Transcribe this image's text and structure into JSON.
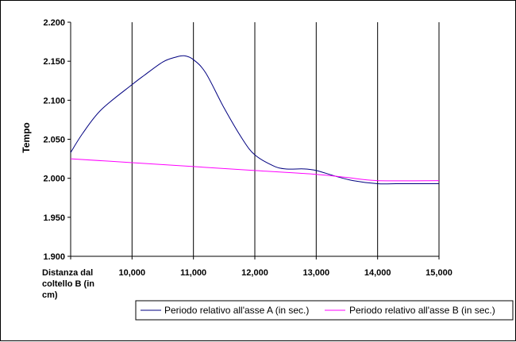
{
  "chart_data": {
    "type": "line",
    "title": "",
    "ylabel": "Tempo",
    "x_categories": [
      "Distanza dal coltello B (in cm)",
      "10,000",
      "11,000",
      "12,000",
      "13,000",
      "14,000",
      "15,000"
    ],
    "x_category_lines": [
      "Distanza dal",
      "coltello B (in",
      "cm)"
    ],
    "xlim": [
      9,
      15
    ],
    "ylim": [
      1.9,
      2.2
    ],
    "yticks": [
      "1.900",
      "1.950",
      "2.000",
      "2.050",
      "2.100",
      "2.150",
      "2.200"
    ],
    "ytick_values": [
      1.9,
      1.95,
      2.0,
      2.05,
      2.1,
      2.15,
      2.2
    ],
    "grid": "vertical",
    "legend_position": "bottom-right",
    "series": [
      {
        "name": "Periodo relativo all'asse A (in sec.)",
        "color": "#000080",
        "x": [
          9.0,
          9.2,
          9.5,
          10.0,
          10.2,
          10.5,
          10.7,
          10.85,
          11.0,
          11.2,
          11.5,
          11.8,
          12.0,
          12.3,
          12.5,
          12.8,
          13.0,
          13.3,
          13.6,
          14.0,
          14.3,
          15.0
        ],
        "y": [
          2.033,
          2.058,
          2.088,
          2.12,
          2.132,
          2.149,
          2.155,
          2.157,
          2.152,
          2.135,
          2.09,
          2.05,
          2.03,
          2.016,
          2.012,
          2.012,
          2.01,
          2.003,
          1.997,
          1.993,
          1.993,
          1.993
        ]
      },
      {
        "name": "Periodo relativo all'asse B (in sec.)",
        "color": "#ff00ff",
        "x": [
          9.0,
          10.0,
          11.0,
          12.0,
          13.0,
          13.5,
          14.0,
          15.0
        ],
        "y": [
          2.025,
          2.02,
          2.015,
          2.01,
          2.005,
          2.001,
          1.997,
          1.997
        ]
      }
    ]
  }
}
